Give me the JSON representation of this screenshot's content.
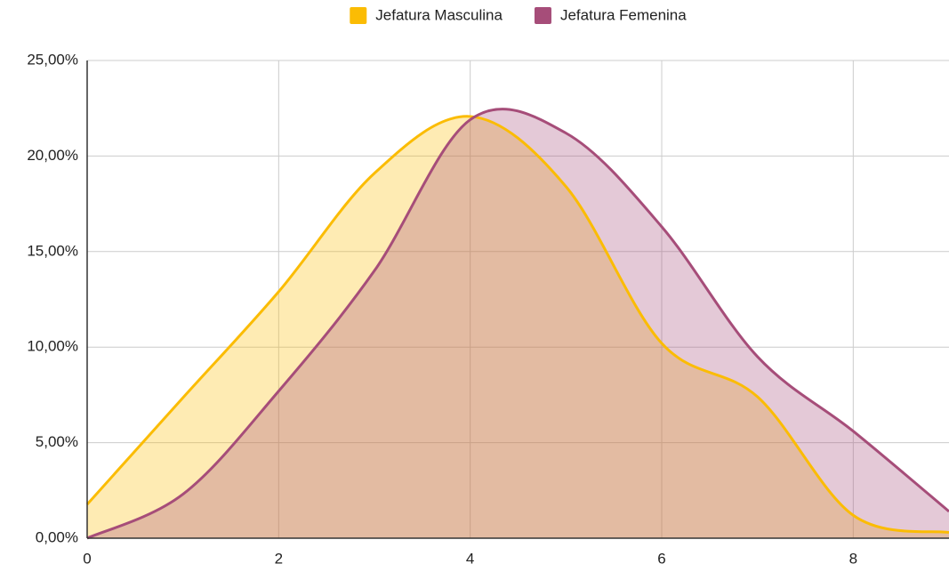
{
  "chart_data": {
    "type": "area",
    "x": [
      0,
      1,
      2,
      3,
      4,
      5,
      6,
      7,
      8,
      9
    ],
    "series": [
      {
        "name": "Jefatura Masculina",
        "color": "#fbbc04",
        "values": [
          1.77,
          7.35,
          12.9,
          19.1,
          22.07,
          18.4,
          10.2,
          7.4,
          1.2,
          0.3
        ]
      },
      {
        "name": "Jefatura Femenina",
        "color": "#a64d79",
        "values": [
          0,
          2.3,
          7.7,
          14.0,
          21.9,
          21.2,
          16.3,
          9.5,
          5.6,
          1.4
        ]
      }
    ],
    "xlim": [
      0,
      9
    ],
    "xticks": [
      0,
      2,
      4,
      6,
      8
    ],
    "ylim": [
      0,
      25
    ],
    "yticks": [
      {
        "value": 0,
        "label": "0,00%"
      },
      {
        "value": 5,
        "label": "5,00%"
      },
      {
        "value": 10,
        "label": "10,00%"
      },
      {
        "value": 15,
        "label": "15,00%"
      },
      {
        "value": 20,
        "label": "20,00%"
      },
      {
        "value": 25,
        "label": "25,00%"
      }
    ],
    "grid": true,
    "legend": "top"
  }
}
